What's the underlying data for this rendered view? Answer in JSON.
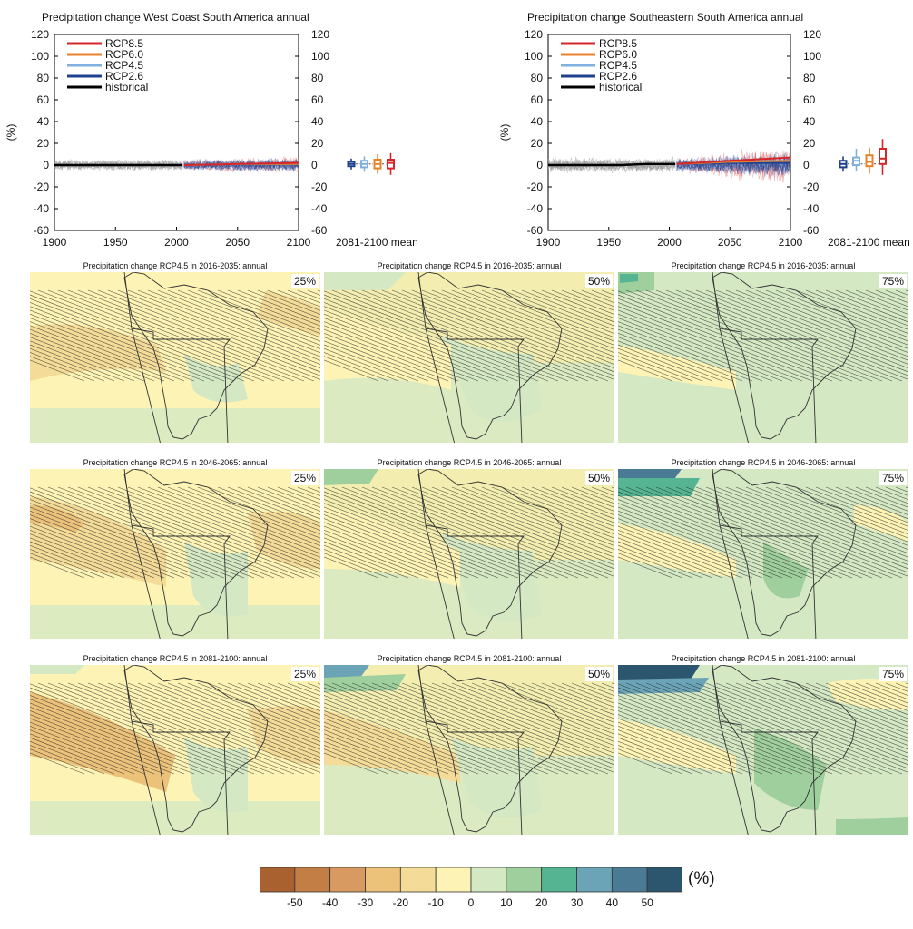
{
  "colors": {
    "rcp85": "#d62728",
    "rcp60": "#e8822a",
    "rcp45": "#7fb0e0",
    "rcp26": "#1f3f8f",
    "historical": "#000000",
    "hist_spread": "#9a9a9a"
  },
  "time_series": [
    {
      "title": "Precipitation change West Coast South America annual",
      "ylabel": "(%)",
      "xlabel_right": "2081-2100 mean",
      "legend": [
        "RCP8.5",
        "RCP6.0",
        "RCP4.5",
        "RCP2.6",
        "historical"
      ],
      "x_ticks": [
        "1900",
        "1950",
        "2000",
        "2050",
        "2100"
      ],
      "y_ticks": [
        "120",
        "100",
        "80",
        "60",
        "40",
        "20",
        "0",
        "-20",
        "-40",
        "-60"
      ],
      "boxplots": [
        {
          "scenario": "RCP2.6",
          "min": -4,
          "q1": -1,
          "median": 1,
          "q3": 3,
          "max": 6
        },
        {
          "scenario": "RCP4.5",
          "min": -6,
          "q1": -2,
          "median": 1,
          "q3": 4,
          "max": 8
        },
        {
          "scenario": "RCP6.0",
          "min": -8,
          "q1": -3,
          "median": 1,
          "q3": 5,
          "max": 10
        },
        {
          "scenario": "RCP8.5",
          "min": -9,
          "q1": -3,
          "median": 2,
          "q3": 5,
          "max": 11
        }
      ]
    },
    {
      "title": "Precipitation change Southeastern South America annual",
      "ylabel": "(%)",
      "xlabel_right": "2081-2100 mean",
      "legend": [
        "RCP8.5",
        "RCP6.0",
        "RCP4.5",
        "RCP2.6",
        "historical"
      ],
      "x_ticks": [
        "1900",
        "1950",
        "2000",
        "2050",
        "2100"
      ],
      "y_ticks": [
        "120",
        "100",
        "80",
        "60",
        "40",
        "20",
        "0",
        "-20",
        "-40",
        "-60"
      ],
      "boxplots": [
        {
          "scenario": "RCP2.6",
          "min": -6,
          "q1": -2,
          "median": 1,
          "q3": 4,
          "max": 8
        },
        {
          "scenario": "RCP4.5",
          "min": -5,
          "q1": 0,
          "median": 4,
          "q3": 7,
          "max": 15
        },
        {
          "scenario": "RCP6.0",
          "min": -8,
          "q1": -1,
          "median": 3,
          "q3": 9,
          "max": 16
        },
        {
          "scenario": "RCP8.5",
          "min": -9,
          "q1": 1,
          "median": 6,
          "q3": 15,
          "max": 24
        }
      ]
    }
  ],
  "chart_data": [
    {
      "type": "line",
      "title": "Precipitation change West Coast South America annual",
      "ylabel": "(%)",
      "xlim": [
        1900,
        2100
      ],
      "ylim": [
        -60,
        120
      ],
      "series": [
        {
          "name": "historical",
          "x": [
            1900,
            1920,
            1940,
            1960,
            1980,
            2005
          ],
          "y": [
            0,
            0,
            0,
            0,
            0,
            0
          ]
        },
        {
          "name": "RCP2.6",
          "x": [
            2006,
            2050,
            2100
          ],
          "y": [
            0,
            1,
            1
          ]
        },
        {
          "name": "RCP4.5",
          "x": [
            2006,
            2050,
            2100
          ],
          "y": [
            0,
            1,
            1
          ]
        },
        {
          "name": "RCP6.0",
          "x": [
            2006,
            2050,
            2100
          ],
          "y": [
            0,
            1,
            1
          ]
        },
        {
          "name": "RCP8.5",
          "x": [
            2006,
            2050,
            2100
          ],
          "y": [
            0,
            1,
            2
          ]
        }
      ]
    },
    {
      "type": "line",
      "title": "Precipitation change Southeastern South America annual",
      "ylabel": "(%)",
      "xlim": [
        1900,
        2100
      ],
      "ylim": [
        -60,
        120
      ],
      "series": [
        {
          "name": "historical",
          "x": [
            1900,
            1920,
            1940,
            1960,
            1980,
            2005
          ],
          "y": [
            0,
            0,
            0,
            0,
            1,
            1
          ]
        },
        {
          "name": "RCP2.6",
          "x": [
            2006,
            2050,
            2100
          ],
          "y": [
            1,
            2,
            2
          ]
        },
        {
          "name": "RCP4.5",
          "x": [
            2006,
            2050,
            2100
          ],
          "y": [
            1,
            3,
            4
          ]
        },
        {
          "name": "RCP6.0",
          "x": [
            2006,
            2050,
            2100
          ],
          "y": [
            1,
            3,
            4
          ]
        },
        {
          "name": "RCP8.5",
          "x": [
            2006,
            2050,
            2100
          ],
          "y": [
            1,
            4,
            7
          ]
        }
      ]
    },
    {
      "type": "heatmap",
      "maps": [
        {
          "title": "Precipitation change RCP4.5 in 2016-2035: annual",
          "percentile": "25%"
        },
        {
          "title": "Precipitation change RCP4.5 in 2016-2035: annual",
          "percentile": "50%"
        },
        {
          "title": "Precipitation change RCP4.5 in 2016-2035: annual",
          "percentile": "75%"
        },
        {
          "title": "Precipitation change RCP4.5 in 2046-2065: annual",
          "percentile": "25%"
        },
        {
          "title": "Precipitation change RCP4.5 in 2046-2065: annual",
          "percentile": "50%"
        },
        {
          "title": "Precipitation change RCP4.5 in 2046-2065: annual",
          "percentile": "75%"
        },
        {
          "title": "Precipitation change RCP4.5 in 2081-2100: annual",
          "percentile": "25%"
        },
        {
          "title": "Precipitation change RCP4.5 in 2081-2100: annual",
          "percentile": "50%"
        },
        {
          "title": "Precipitation change RCP4.5 in 2081-2100: annual",
          "percentile": "75%"
        }
      ]
    }
  ],
  "colorbar": {
    "unit": "(%)",
    "ticks": [
      "-50",
      "-40",
      "-30",
      "-20",
      "-10",
      "0",
      "10",
      "20",
      "30",
      "40",
      "50"
    ],
    "colors": [
      "#a8612f",
      "#c27e45",
      "#d89a60",
      "#ecc27a",
      "#f4dc98",
      "#fdf3b5",
      "#d4e8c4",
      "#9fcf9c",
      "#55b592",
      "#6ba4b6",
      "#4b7a94",
      "#2c566e"
    ]
  }
}
